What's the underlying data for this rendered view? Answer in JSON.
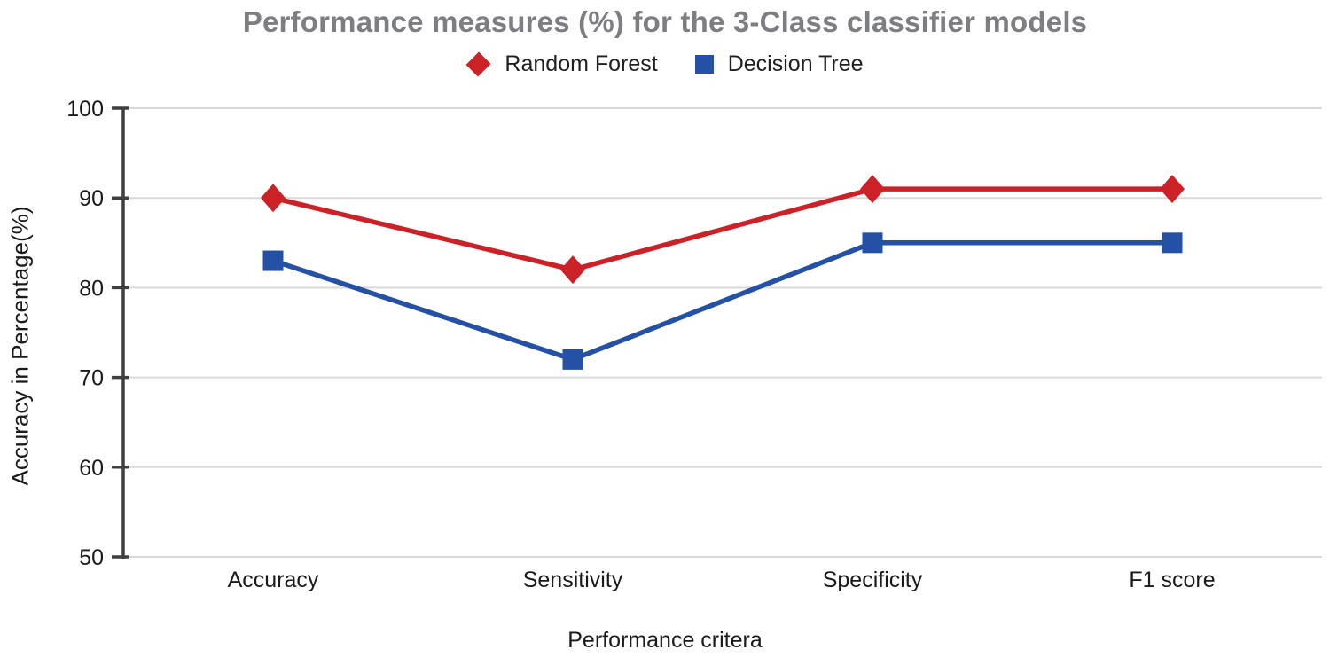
{
  "page": {
    "background_color": "#ffffff"
  },
  "chart_data": {
    "type": "line",
    "title": "Performance measures (%) for the 3-Class classifier models",
    "categories": [
      "Accuracy",
      "Sensitivity",
      "Specificity",
      "F1 score"
    ],
    "series": [
      {
        "name": "Random Forest",
        "marker": "diamond",
        "color": "#cb2127",
        "values": [
          90,
          82,
          91,
          91
        ]
      },
      {
        "name": "Decision Tree",
        "marker": "square",
        "color": "#2451a5",
        "values": [
          83,
          72,
          85,
          85
        ]
      }
    ],
    "xlabel": "Performance critera",
    "ylabel": "Accuracy in Percentage(%)",
    "ylim": [
      50,
      100
    ],
    "yticks": [
      50,
      60,
      70,
      80,
      90,
      100
    ],
    "grid": true,
    "legend_position": "top",
    "styles": {
      "title_color": "#7d7e82",
      "text_color": "#1a1a1a",
      "gridline_color": "#d9d9d9",
      "axis_line_color": "#3f3f3f"
    }
  }
}
